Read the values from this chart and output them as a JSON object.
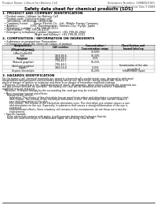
{
  "bg_color": "#ffffff",
  "header_top_left": "Product Name: Lithium Ion Battery Cell",
  "header_top_right": "Substance Number: 1SMB3EZ180\nEstablished / Revision: Dec.7.2009",
  "title": "Safety data sheet for chemical products (SDS)",
  "section1_title": "1. PRODUCT AND COMPANY IDENTIFICATION",
  "section1_lines": [
    "  • Product name: Lithium Ion Battery Cell",
    "  • Product code: Cylindrical-type cell",
    "     (UR18650J, UR18650A, UR18650A)",
    "  • Company name:      Sanyo Electric Co., Ltd., Mobile Energy Company",
    "  • Address:              2001  Kamimunakan, Sumoto-City, Hyogo, Japan",
    "  • Telephone number:   +81-799-26-4111",
    "  • Fax number:  +81-799-26-4120",
    "  • Emergency telephone number (daytime): +81-799-26-2662",
    "                                    (Night and holiday): +81-799-26-2101"
  ],
  "section2_title": "2. COMPOSITION / INFORMATION ON INGREDIENTS",
  "section2_intro": "  • Substance or preparation: Preparation",
  "section2_sub": "  • Information about the chemical nature of product:",
  "table_headers": [
    "Component(s)\n(Chemical name)",
    "CAS number",
    "Concentration /\nConcentration range",
    "Classification and\nhazard labeling"
  ],
  "table_rows": [
    [
      "Lithium cobalt oxide\n(LiMnxCoyNizO2)",
      "-",
      "30-60%",
      "-"
    ],
    [
      "Iron",
      "7439-89-6",
      "10-30%",
      "-"
    ],
    [
      "Aluminum",
      "7429-90-5",
      "2-5%",
      "-"
    ],
    [
      "Graphite\n(Natural graphite)\n(Artificial graphite)",
      "7782-42-5\n7782-44-0",
      "10-25%",
      "-"
    ],
    [
      "Copper",
      "7440-50-8",
      "5-15%",
      "Sensitization of the skin\ngroup No.2"
    ],
    [
      "Organic electrolyte",
      "-",
      "10-20%",
      "Inflammable liquid"
    ]
  ],
  "section3_title": "3. HAZARDS IDENTIFICATION",
  "section3_para1": [
    "For the battery cell, chemical materials are stored in a hermetically-sealed metal case, designed to withstand",
    "temperatures and pressures-concentrations during normal use. As a result, during normal use, there is no",
    "physical danger of ignition or explosion and there is no danger of hazardous materials leakage.",
    "   However, if exposed to a fire, added mechanical shock, decomposes, when electro-chemical dry materials are,",
    "the gas release vent will be operated. The battery cell case will be breached at the extreme. Hazardous",
    "materials may be released.",
    "   Moreover, if heated strongly by the surrounding fire, acid gas may be emitted."
  ],
  "section3_bullet1_title": "  • Most important hazard and effects:",
  "section3_bullet1_lines": [
    "      Human health effects:",
    "         Inhalation: The release of the electrolyte has an anesthesia action and stimulates a respiratory tract.",
    "         Skin contact: The release of the electrolyte stimulates a skin. The electrolyte skin contact causes a",
    "         sore and stimulation on the skin.",
    "         Eye contact: The release of the electrolyte stimulates eyes. The electrolyte eye contact causes a sore",
    "         and stimulation on the eye. Especially, a substance that causes a strong inflammation of the eye is",
    "         contained.",
    "         Environmental effects: Since a battery cell remains in the environment, do not throw out it into the",
    "         environment."
  ],
  "section3_bullet2_title": "  • Specific hazards:",
  "section3_bullet2_lines": [
    "      If the electrolyte contacts with water, it will generate detrimental hydrogen fluoride.",
    "      Since the used electrolyte is inflammable liquid, do not bring close to fire."
  ],
  "bottom_line": true
}
